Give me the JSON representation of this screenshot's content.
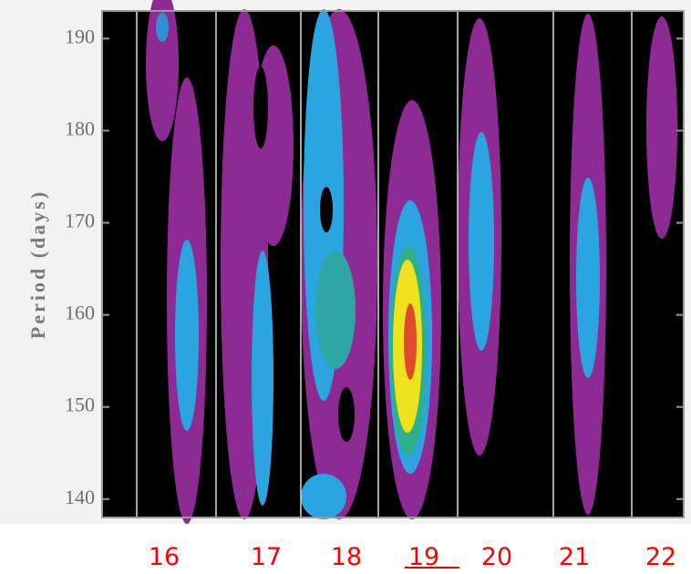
{
  "chart_data": {
    "type": "contour",
    "y_label": "Period (days)",
    "categories": [
      "16",
      "17",
      "18",
      "19",
      "20",
      "21",
      "22"
    ],
    "underlined_category": 3,
    "category_color": "#ff0000",
    "ylim": [
      138,
      193
    ],
    "yticks": [
      140,
      150,
      160,
      170,
      180,
      190
    ]
  }
}
